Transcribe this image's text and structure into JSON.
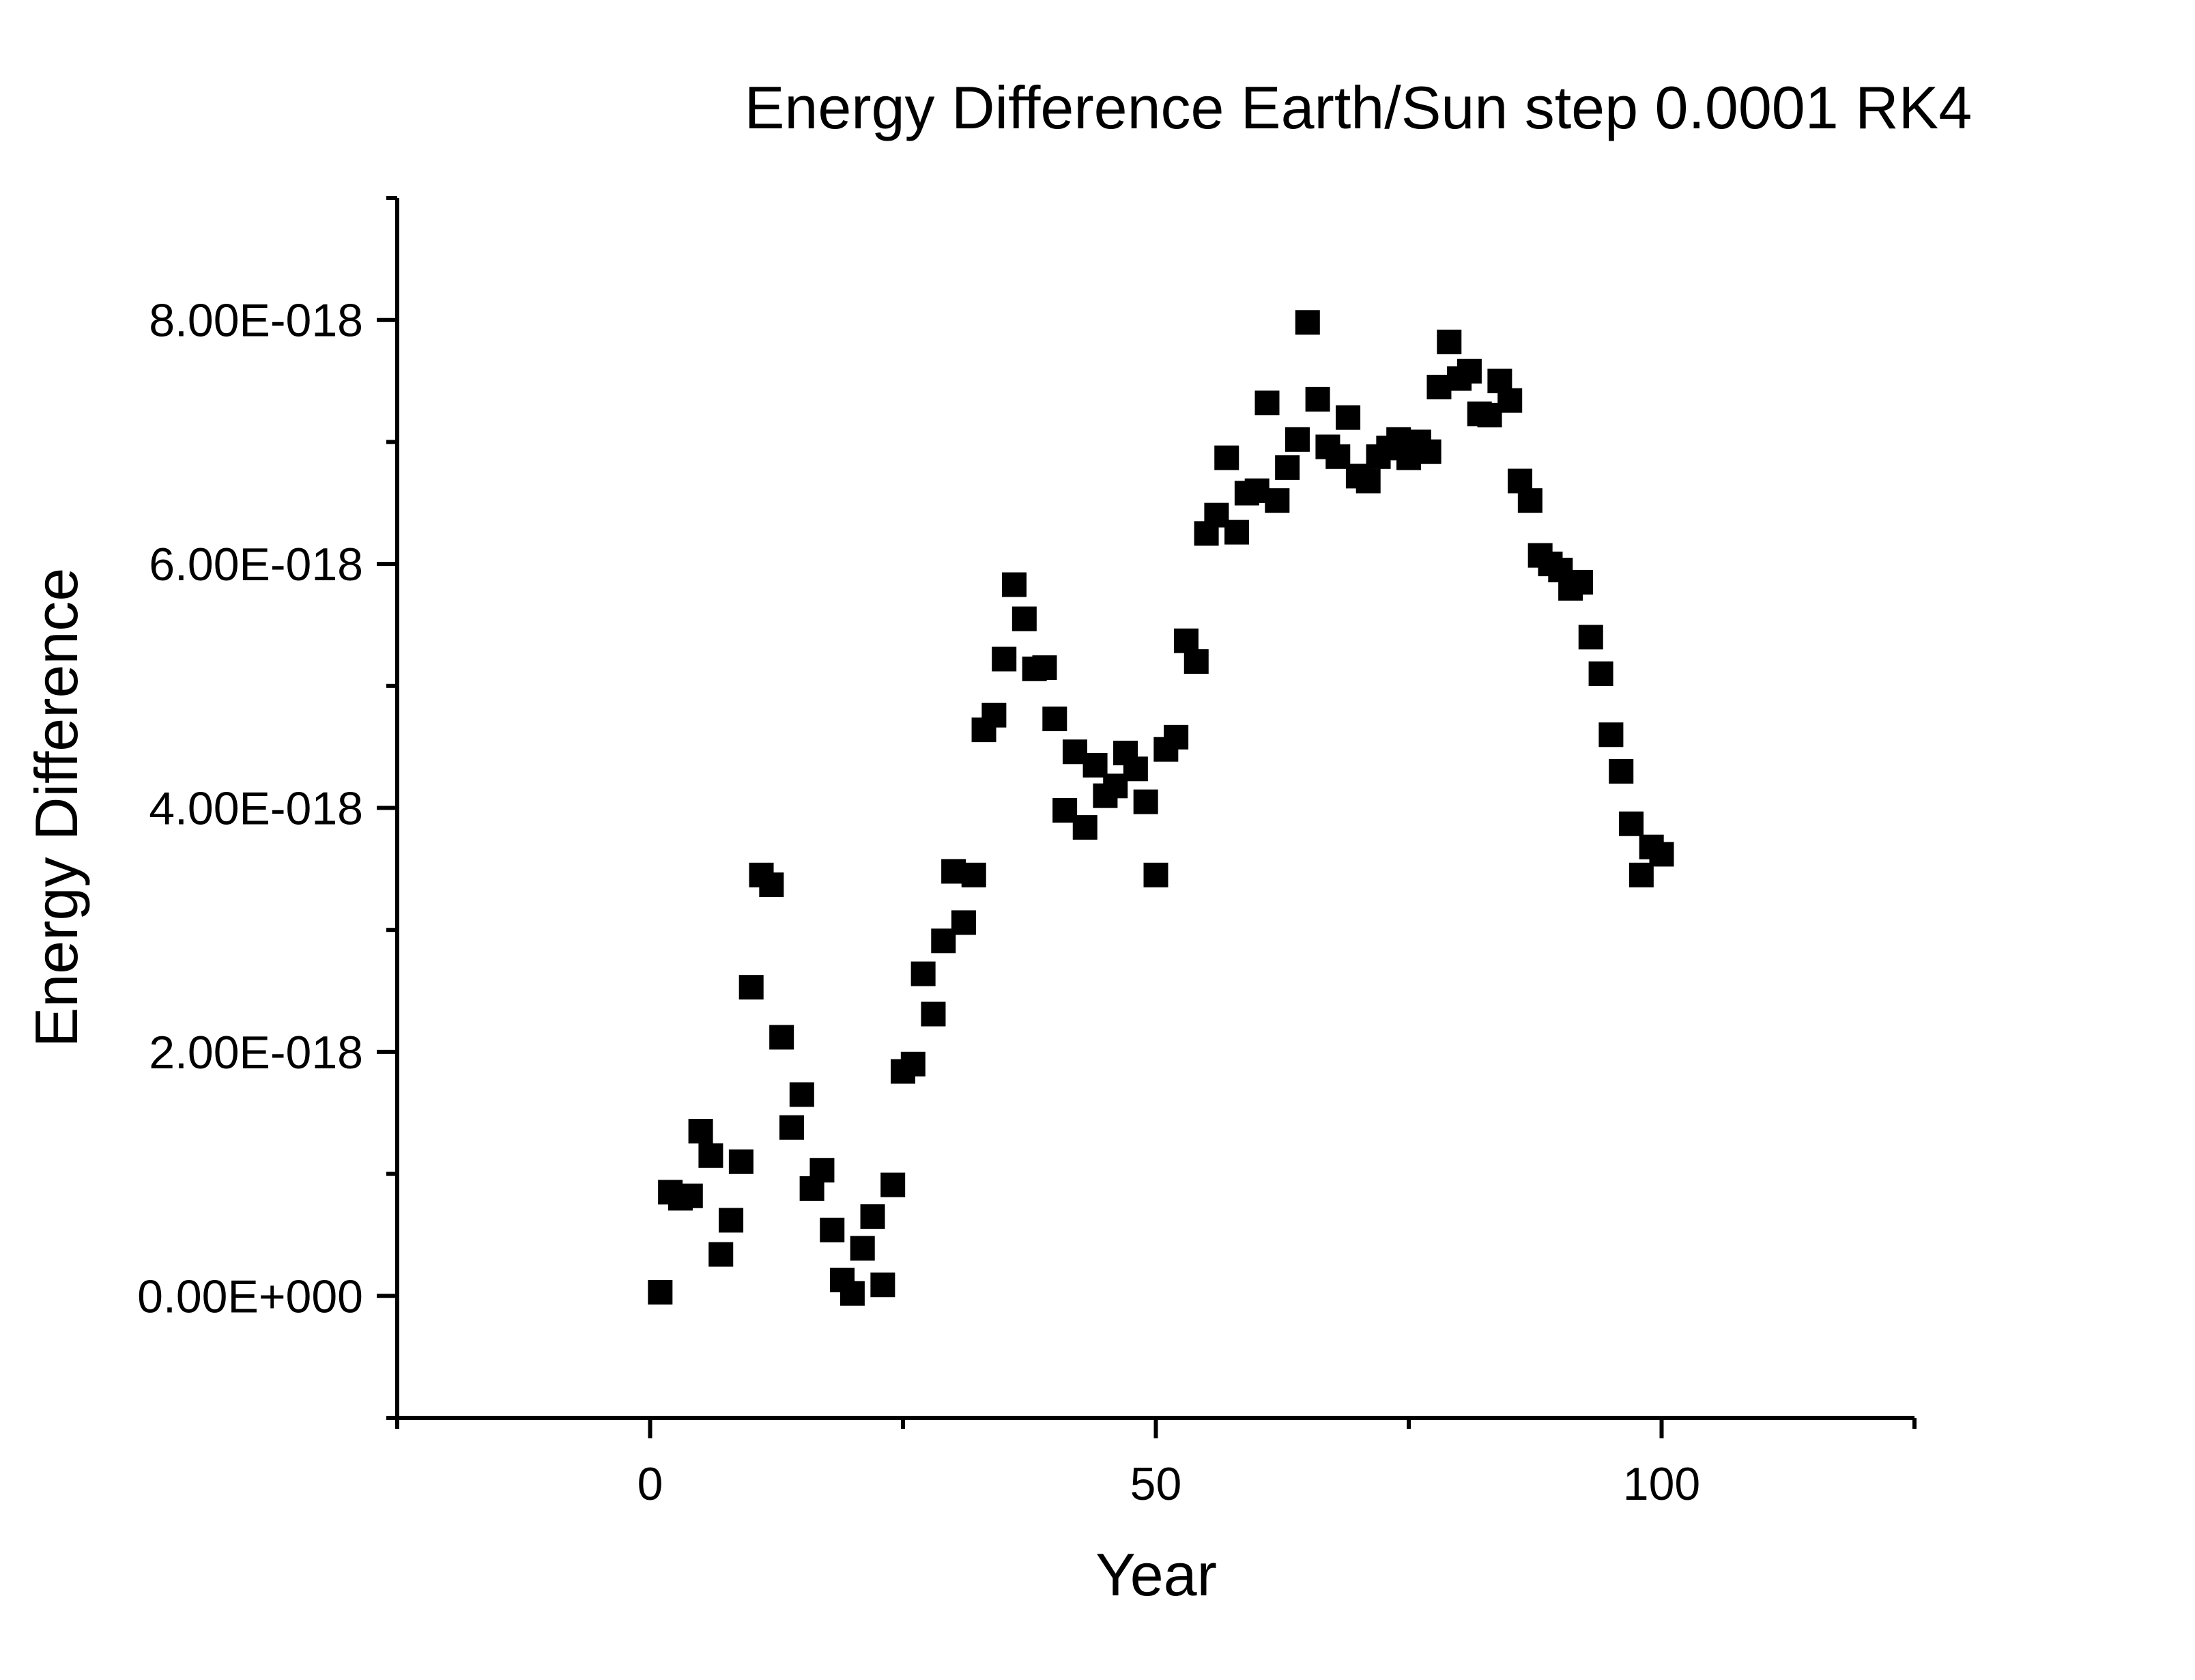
{
  "chart_data": {
    "type": "scatter",
    "title": "Energy Difference Earth/Sun step 0.0001 RK4",
    "xlabel": "Year",
    "ylabel": "Energy Difference",
    "xlim": [
      -25,
      125
    ],
    "ylim": [
      -1e-18,
      9e-18
    ],
    "x_ticks": [
      0,
      50,
      100
    ],
    "x_tick_labels": [
      "0",
      "50",
      "100"
    ],
    "y_ticks": [
      0,
      2e-18,
      4e-18,
      6e-18,
      8e-18
    ],
    "y_tick_labels": [
      "0.00E+000",
      "2.00E-018",
      "4.00E-018",
      "6.00E-018",
      "8.00E-018"
    ],
    "grid": false,
    "legend": false,
    "marker": "square",
    "marker_color": "#000000",
    "series": [
      {
        "x": [
          1,
          2,
          3,
          4,
          5,
          6,
          7,
          8,
          9,
          10,
          11,
          12,
          13,
          14,
          15,
          16,
          17,
          18,
          19,
          20,
          21,
          22,
          23,
          24,
          25,
          26,
          27,
          28,
          29,
          30,
          31,
          32,
          33,
          34,
          35,
          36,
          37,
          38,
          39,
          40,
          41,
          42,
          43,
          44,
          45,
          46,
          47,
          48,
          49,
          50,
          51,
          52,
          53,
          54,
          55,
          56,
          57,
          58,
          59,
          60,
          61,
          62,
          63,
          64,
          65,
          66,
          67,
          68,
          69,
          70,
          71,
          72,
          73,
          74,
          75,
          76,
          77,
          78,
          79,
          80,
          81,
          82,
          83,
          84,
          85,
          86,
          87,
          88,
          89,
          90,
          91,
          92,
          93,
          94,
          95,
          96,
          97,
          98,
          99,
          100
        ],
        "y": [
          3e-20,
          8.5e-19,
          8e-19,
          8.2e-19,
          1.35e-18,
          1.15e-18,
          3.4e-19,
          6.2e-19,
          1.1e-18,
          2.53e-18,
          3.45e-18,
          3.37e-18,
          2.12e-18,
          1.38e-18,
          1.65e-18,
          8.8e-19,
          1.03e-18,
          5.4e-19,
          1.3e-19,
          2e-20,
          3.9e-19,
          6.5e-19,
          9e-20,
          9.1e-19,
          1.84e-18,
          1.9e-18,
          2.64e-18,
          2.31e-18,
          2.91e-18,
          3.48e-18,
          3.06e-18,
          3.45e-18,
          4.64e-18,
          4.76e-18,
          5.22e-18,
          5.83e-18,
          5.55e-18,
          5.14e-18,
          5.15e-18,
          4.73e-18,
          3.98e-18,
          4.46e-18,
          3.84e-18,
          4.35e-18,
          4.1e-18,
          4.18e-18,
          4.45e-18,
          4.32e-18,
          4.05e-18,
          3.45e-18,
          4.48e-18,
          4.58e-18,
          5.37e-18,
          5.2e-18,
          6.25e-18,
          6.4e-18,
          6.87e-18,
          6.26e-18,
          6.58e-18,
          6.6e-18,
          7.32e-18,
          6.52e-18,
          6.79e-18,
          7.02e-18,
          7.98e-18,
          7.35e-18,
          6.96e-18,
          6.88e-18,
          7.2e-18,
          6.72e-18,
          6.68e-18,
          6.88e-18,
          6.95e-18,
          7.02e-18,
          6.87e-18,
          7e-18,
          6.92e-18,
          7.45e-18,
          7.82e-18,
          7.52e-18,
          7.58e-18,
          7.23e-18,
          7.22e-18,
          7.5e-18,
          7.34e-18,
          6.68e-18,
          6.52e-18,
          6.07e-18,
          6e-18,
          5.95e-18,
          5.8e-18,
          5.85e-18,
          5.4e-18,
          5.1e-18,
          4.6e-18,
          4.3e-18,
          3.87e-18,
          3.45e-18,
          3.68e-18,
          3.62e-18
        ]
      }
    ]
  }
}
